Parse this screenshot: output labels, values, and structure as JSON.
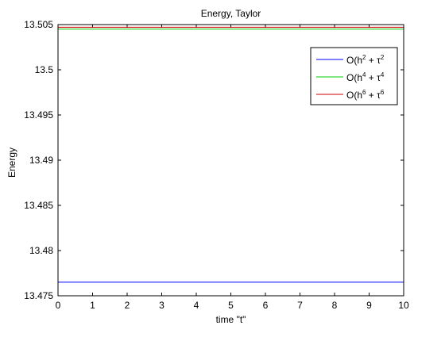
{
  "chart_data": {
    "type": "line",
    "title": "Energy, Taylor",
    "xlabel": "time \"t\"",
    "ylabel": "Energy",
    "xlim": [
      0,
      10
    ],
    "ylim": [
      13.475,
      13.505
    ],
    "xticks": [
      "0",
      "1",
      "2",
      "3",
      "4",
      "5",
      "6",
      "7",
      "8",
      "9",
      "10"
    ],
    "yticks": [
      "13.475",
      "13.48",
      "13.485",
      "13.49",
      "13.495",
      "13.5",
      "13.505"
    ],
    "grid": false,
    "legend_position": "top-right",
    "series": [
      {
        "name": "O(h2 + τ2",
        "legend_parts": [
          "O(h",
          "2",
          " + τ",
          "2"
        ],
        "color": "#0000ff",
        "x": [
          0,
          10
        ],
        "y": [
          13.4765,
          13.4765
        ]
      },
      {
        "name": "O(h4 + τ4",
        "legend_parts": [
          "O(h",
          "4",
          " + τ",
          "4"
        ],
        "color": "#00cc00",
        "x": [
          0,
          10
        ],
        "y": [
          13.5045,
          13.5045
        ]
      },
      {
        "name": "O(h6 + τ6",
        "legend_parts": [
          "O(h",
          "6",
          " + τ",
          "6"
        ],
        "color": "#cc0000",
        "x": [
          0,
          10
        ],
        "y": [
          13.5047,
          13.5047
        ]
      }
    ]
  }
}
